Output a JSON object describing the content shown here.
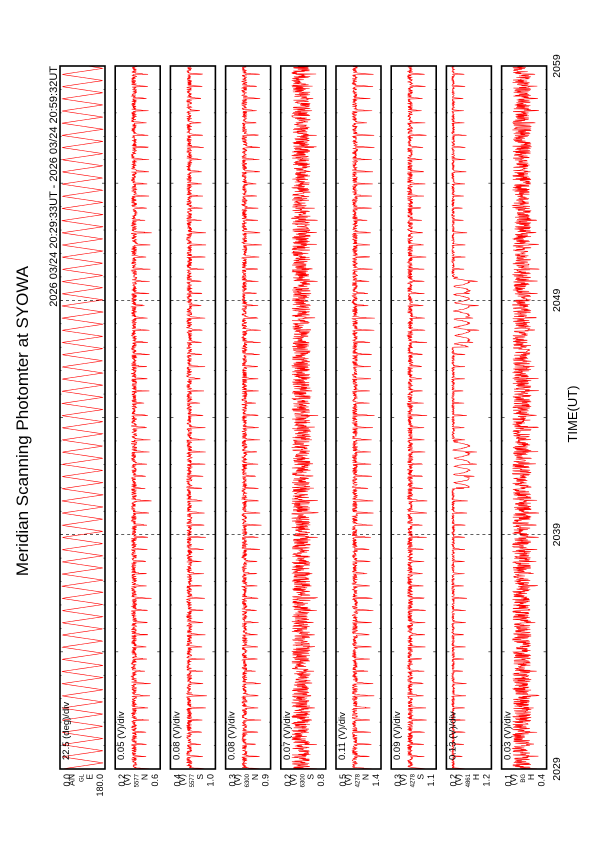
{
  "chart_data": {
    "type": "line",
    "title": "Meridian Scanning Photomter at SYOWA",
    "time_range_label": "2026 03/24 20:29:33UT - 2026 03/24 20:59:32UT",
    "xlabel": "TIME(UT)",
    "x_ticks": [
      "2029",
      "2039",
      "2049",
      "2059"
    ],
    "xlim_minutes": [
      0,
      30
    ],
    "grid": "dashed vertical lines at major ticks",
    "panels": [
      {
        "id": "scan-angle",
        "label_lines": [
          "AN",
          "GL",
          "E"
        ],
        "scale": "22.5 (deg)/div",
        "y_ticks": [
          "180.0",
          "0.0"
        ],
        "ylim": [
          0,
          180
        ],
        "pattern": "sawtooth",
        "amplitude": 0.92,
        "period_minutes": 0.52,
        "series_color": "#ff0000"
      },
      {
        "id": "ch-5577-n",
        "label_lines": [
          "(V)",
          "5577",
          "N"
        ],
        "scale": "0.05 (V)/div",
        "y_ticks": [
          "0.6",
          "0.2"
        ],
        "ylim": [
          0.2,
          0.6
        ],
        "pattern": "pulse",
        "amplitude": 0.35,
        "period_minutes": 0.52,
        "series_color": "#ff0000"
      },
      {
        "id": "ch-5577-s",
        "label_lines": [
          "(V)",
          "5577",
          "S"
        ],
        "scale": "0.08 (V)/div",
        "y_ticks": [
          "1.0",
          "0.4"
        ],
        "ylim": [
          0.4,
          1.0
        ],
        "pattern": "pulse",
        "amplitude": 0.35,
        "period_minutes": 0.52,
        "series_color": "#ff0000"
      },
      {
        "id": "ch-6300-n",
        "label_lines": [
          "(V)",
          "6300",
          "N"
        ],
        "scale": "0.08 (V)/div",
        "y_ticks": [
          "0.9",
          "0.3"
        ],
        "ylim": [
          0.3,
          0.9
        ],
        "pattern": "pulse",
        "amplitude": 0.35,
        "period_minutes": 0.52,
        "series_color": "#ff0000"
      },
      {
        "id": "ch-6300-s",
        "label_lines": [
          "(V)",
          "6300",
          "S"
        ],
        "scale": "0.07 (V)/div",
        "y_ticks": [
          "0.8",
          "0.2"
        ],
        "ylim": [
          0.2,
          0.8
        ],
        "pattern": "noise",
        "amplitude": 0.3,
        "period_minutes": 0.52,
        "series_color": "#ff0000"
      },
      {
        "id": "ch-4278-n",
        "label_lines": [
          "(V)",
          "4278",
          "N"
        ],
        "scale": "0.11 (V)/div",
        "y_ticks": [
          "1.4",
          "0.5"
        ],
        "ylim": [
          0.5,
          1.4
        ],
        "pattern": "pulse",
        "amplitude": 0.4,
        "period_minutes": 0.52,
        "series_color": "#ff0000"
      },
      {
        "id": "ch-4278-s",
        "label_lines": [
          "(V)",
          "4278",
          "S"
        ],
        "scale": "0.09 (V)/div",
        "y_ticks": [
          "1.1",
          "0.3"
        ],
        "ylim": [
          0.3,
          1.1
        ],
        "pattern": "pulse",
        "amplitude": 0.35,
        "period_minutes": 0.52,
        "series_color": "#ff0000"
      },
      {
        "id": "ch-4861",
        "label_lines": [
          "(V)",
          "4861",
          "H"
        ],
        "scale": "0.13 (V)/div",
        "y_ticks": [
          "1.2",
          "0.2"
        ],
        "ylim": [
          0.2,
          1.2
        ],
        "pattern": "pulse-burst",
        "amplitude": 0.3,
        "period_minutes": 0.52,
        "series_color": "#ff0000"
      },
      {
        "id": "ch-bg",
        "label_lines": [
          "(V)",
          "BG",
          "H"
        ],
        "scale": "0.03 (V)/div",
        "y_ticks": [
          "0.4",
          "0.1"
        ],
        "ylim": [
          0.1,
          0.4
        ],
        "pattern": "noise",
        "amplitude": 0.3,
        "period_minutes": 0.52,
        "series_color": "#ff0000"
      }
    ]
  }
}
